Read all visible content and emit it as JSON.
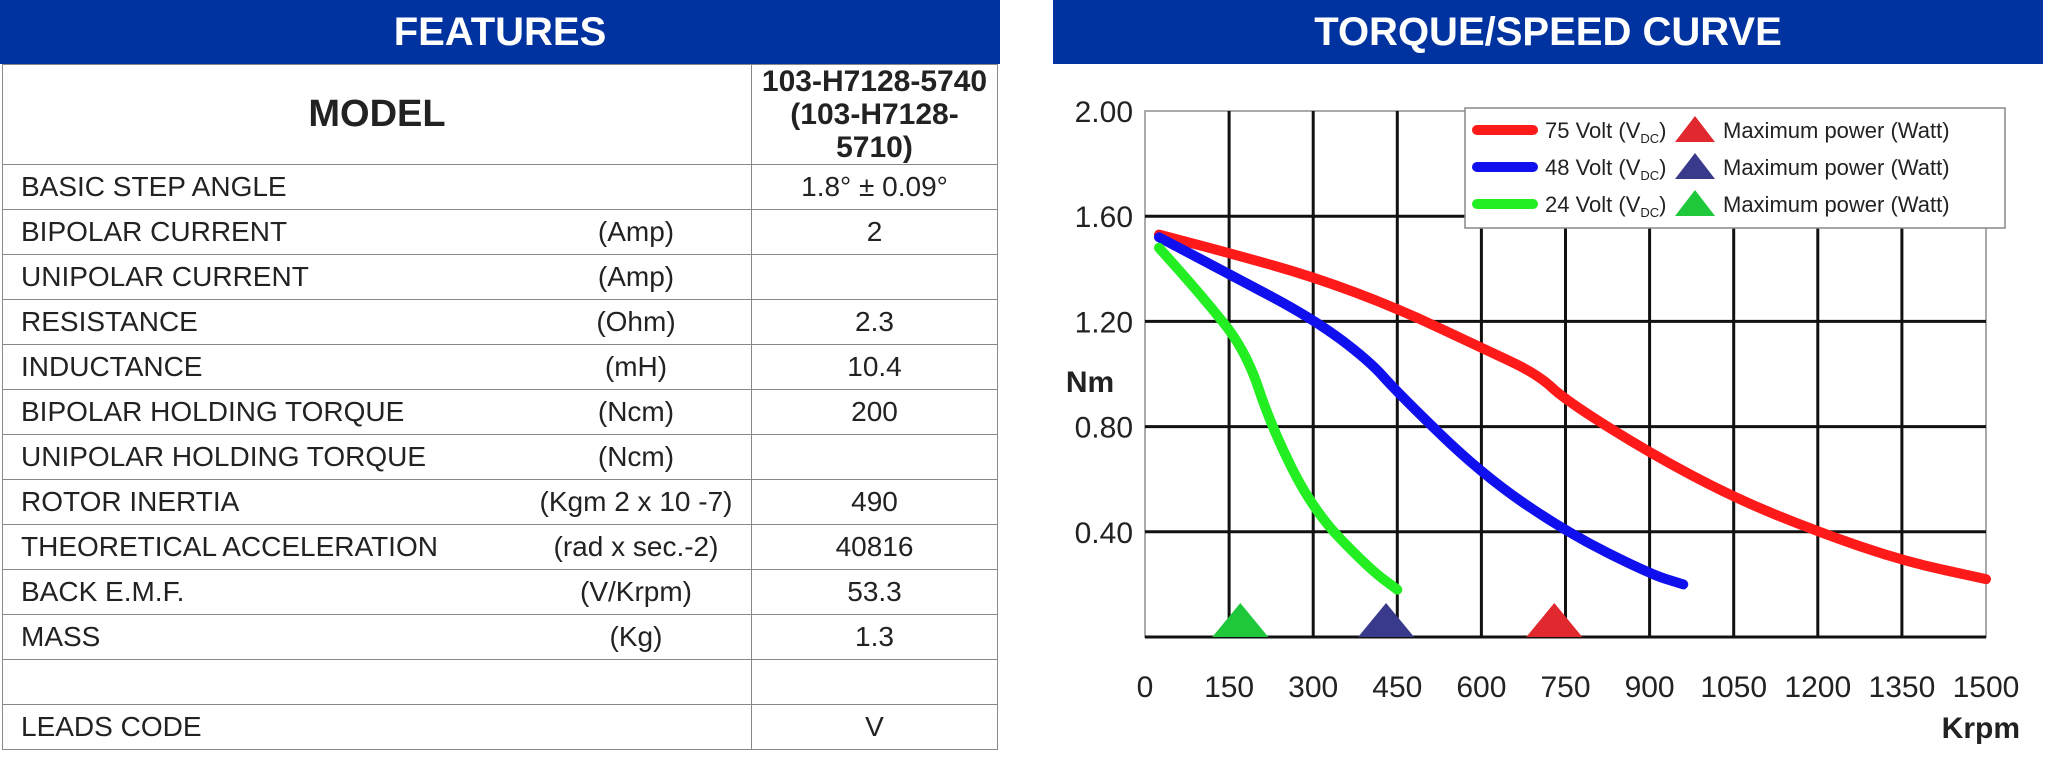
{
  "features": {
    "title": "FEATURES",
    "model_label": "MODEL",
    "model_value_1": "103-H7128-5740",
    "model_value_2": "(103-H7128-5710)",
    "rows": [
      {
        "label": "BASIC STEP ANGLE",
        "unit": "",
        "value": "1.8° ± 0.09°"
      },
      {
        "label": "BIPOLAR CURRENT",
        "unit": "(Amp)",
        "value": "2"
      },
      {
        "label": "UNIPOLAR CURRENT",
        "unit": "(Amp)",
        "value": ""
      },
      {
        "label": "RESISTANCE",
        "unit": "(Ohm)",
        "value": "2.3"
      },
      {
        "label": "INDUCTANCE",
        "unit": "(mH)",
        "value": "10.4"
      },
      {
        "label": "BIPOLAR HOLDING TORQUE",
        "unit": "(Ncm)",
        "value": "200"
      },
      {
        "label": "UNIPOLAR HOLDING TORQUE",
        "unit": "(Ncm)",
        "value": ""
      },
      {
        "label": "ROTOR INERTIA",
        "unit": "(Kgm 2 x 10 -7)",
        "value": "490"
      },
      {
        "label": "THEORETICAL ACCELERATION",
        "unit": "(rad x sec.-2)",
        "value": "40816"
      },
      {
        "label": "BACK E.M.F.",
        "unit": "(V/Krpm)",
        "value": "53.3"
      },
      {
        "label": "MASS",
        "unit": "(Kg)",
        "value": "1.3"
      },
      {
        "label": "",
        "unit": "",
        "value": ""
      },
      {
        "label": "LEADS CODE",
        "unit": "",
        "value": "V"
      }
    ]
  },
  "chart_data": {
    "type": "line",
    "title": "TORQUE/SPEED CURVE",
    "xlabel": "Krpm",
    "ylabel": "Nm",
    "xlim": [
      0,
      1500
    ],
    "ylim": [
      0,
      2.0
    ],
    "xticks": [
      "0",
      "150",
      "300",
      "450",
      "600",
      "750",
      "900",
      "1050",
      "1200",
      "1350",
      "1500"
    ],
    "yticks": [
      "0.40",
      "0.80",
      "1.20",
      "1.60",
      "2.00"
    ],
    "grid": true,
    "legend_placement": "top-right",
    "series": [
      {
        "name": "75 Volt (VDC)",
        "volt": "75 Volt (V",
        "sub": "DC",
        "color": "#ff1a1a",
        "x": [
          25,
          150,
          300,
          450,
          600,
          700,
          750,
          900,
          1050,
          1200,
          1350,
          1500
        ],
        "y": [
          1.53,
          1.46,
          1.37,
          1.25,
          1.1,
          1.0,
          0.9,
          0.7,
          0.53,
          0.4,
          0.29,
          0.22
        ],
        "max_power_label": "Maximum power (Watt)",
        "marker_color": "#e0282e",
        "max_power_x": 730
      },
      {
        "name": "48 Volt (VDC)",
        "volt": "48 Volt (V",
        "sub": "DC",
        "color": "#1010ee",
        "x": [
          25,
          150,
          300,
          400,
          450,
          600,
          750,
          900,
          960
        ],
        "y": [
          1.52,
          1.38,
          1.21,
          1.05,
          0.93,
          0.62,
          0.4,
          0.24,
          0.2
        ],
        "max_power_label": "Maximum power (Watt)",
        "marker_color": "#3a3a8c",
        "max_power_x": 430
      },
      {
        "name": "24 Volt (VDC)",
        "volt": "24 Volt (V",
        "sub": "DC",
        "color": "#22ee22",
        "x": [
          25,
          100,
          180,
          225,
          300,
          400,
          450
        ],
        "y": [
          1.48,
          1.3,
          1.09,
          0.8,
          0.48,
          0.26,
          0.18
        ],
        "max_power_label": "Maximum power (Watt)",
        "marker_color": "#1ec83a",
        "max_power_x": 170
      }
    ]
  }
}
